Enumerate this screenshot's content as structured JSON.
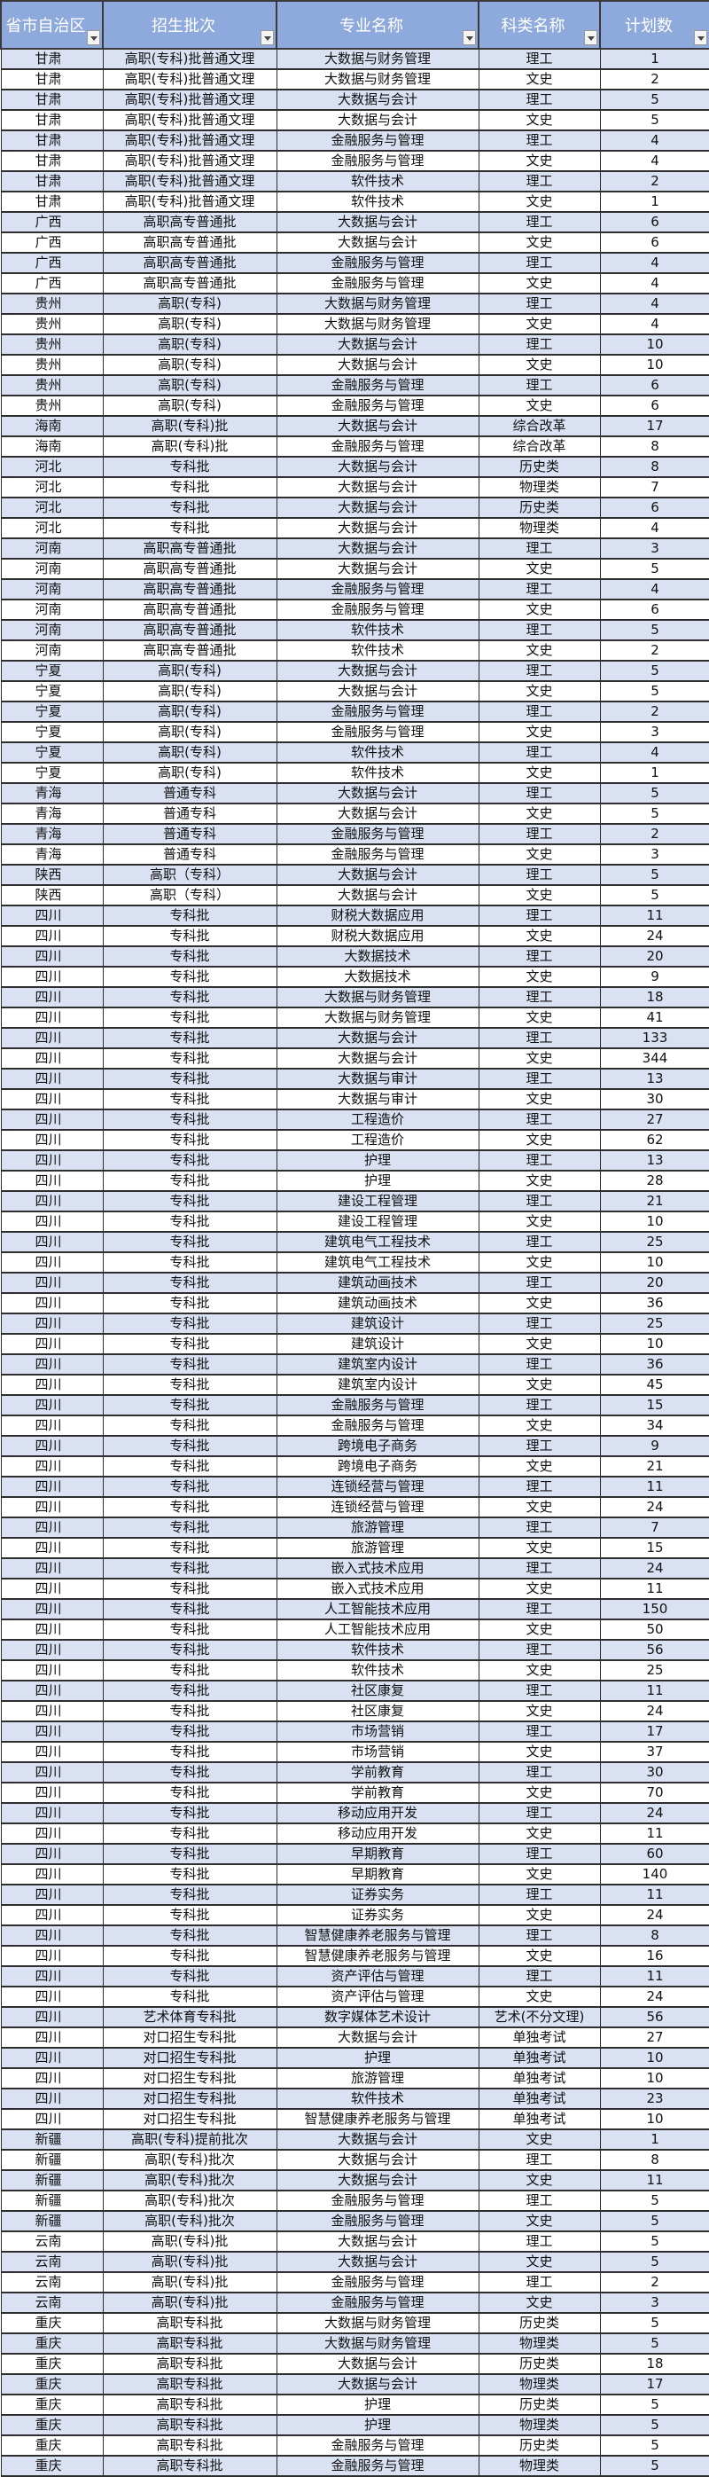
{
  "colors": {
    "header_bg": "#8EA9DB",
    "odd_row": "#D9E1F2",
    "even_row": "#FFFFFF"
  },
  "header": [
    "省市自治区",
    "招生批次",
    "专业名称",
    "科类名称",
    "计划数"
  ],
  "rows": [
    [
      "甘肃",
      "高职(专科)批普通文理",
      "大数据与财务管理",
      "理工",
      "1"
    ],
    [
      "甘肃",
      "高职(专科)批普通文理",
      "大数据与财务管理",
      "文史",
      "2"
    ],
    [
      "甘肃",
      "高职(专科)批普通文理",
      "大数据与会计",
      "理工",
      "5"
    ],
    [
      "甘肃",
      "高职(专科)批普通文理",
      "大数据与会计",
      "文史",
      "5"
    ],
    [
      "甘肃",
      "高职(专科)批普通文理",
      "金融服务与管理",
      "理工",
      "4"
    ],
    [
      "甘肃",
      "高职(专科)批普通文理",
      "金融服务与管理",
      "文史",
      "4"
    ],
    [
      "甘肃",
      "高职(专科)批普通文理",
      "软件技术",
      "理工",
      "2"
    ],
    [
      "甘肃",
      "高职(专科)批普通文理",
      "软件技术",
      "文史",
      "1"
    ],
    [
      "广西",
      "高职高专普通批",
      "大数据与会计",
      "理工",
      "6"
    ],
    [
      "广西",
      "高职高专普通批",
      "大数据与会计",
      "文史",
      "6"
    ],
    [
      "广西",
      "高职高专普通批",
      "金融服务与管理",
      "理工",
      "4"
    ],
    [
      "广西",
      "高职高专普通批",
      "金融服务与管理",
      "文史",
      "4"
    ],
    [
      "贵州",
      "高职(专科)",
      "大数据与财务管理",
      "理工",
      "4"
    ],
    [
      "贵州",
      "高职(专科)",
      "大数据与财务管理",
      "文史",
      "4"
    ],
    [
      "贵州",
      "高职(专科)",
      "大数据与会计",
      "理工",
      "10"
    ],
    [
      "贵州",
      "高职(专科)",
      "大数据与会计",
      "文史",
      "10"
    ],
    [
      "贵州",
      "高职(专科)",
      "金融服务与管理",
      "理工",
      "6"
    ],
    [
      "贵州",
      "高职(专科)",
      "金融服务与管理",
      "文史",
      "6"
    ],
    [
      "海南",
      "高职(专科)批",
      "大数据与会计",
      "综合改革",
      "17"
    ],
    [
      "海南",
      "高职(专科)批",
      "金融服务与管理",
      "综合改革",
      "8"
    ],
    [
      "河北",
      "专科批",
      "大数据与会计",
      "历史类",
      "8"
    ],
    [
      "河北",
      "专科批",
      "大数据与会计",
      "物理类",
      "7"
    ],
    [
      "河北",
      "专科批",
      "大数据与会计",
      "历史类",
      "6"
    ],
    [
      "河北",
      "专科批",
      "大数据与会计",
      "物理类",
      "4"
    ],
    [
      "河南",
      "高职高专普通批",
      "大数据与会计",
      "理工",
      "3"
    ],
    [
      "河南",
      "高职高专普通批",
      "大数据与会计",
      "文史",
      "5"
    ],
    [
      "河南",
      "高职高专普通批",
      "金融服务与管理",
      "理工",
      "4"
    ],
    [
      "河南",
      "高职高专普通批",
      "金融服务与管理",
      "文史",
      "6"
    ],
    [
      "河南",
      "高职高专普通批",
      "软件技术",
      "理工",
      "5"
    ],
    [
      "河南",
      "高职高专普通批",
      "软件技术",
      "文史",
      "2"
    ],
    [
      "宁夏",
      "高职(专科)",
      "大数据与会计",
      "理工",
      "5"
    ],
    [
      "宁夏",
      "高职(专科)",
      "大数据与会计",
      "文史",
      "5"
    ],
    [
      "宁夏",
      "高职(专科)",
      "金融服务与管理",
      "理工",
      "2"
    ],
    [
      "宁夏",
      "高职(专科)",
      "金融服务与管理",
      "文史",
      "3"
    ],
    [
      "宁夏",
      "高职(专科)",
      "软件技术",
      "理工",
      "4"
    ],
    [
      "宁夏",
      "高职(专科)",
      "软件技术",
      "文史",
      "1"
    ],
    [
      "青海",
      "普通专科",
      "大数据与会计",
      "理工",
      "5"
    ],
    [
      "青海",
      "普通专科",
      "大数据与会计",
      "文史",
      "5"
    ],
    [
      "青海",
      "普通专科",
      "金融服务与管理",
      "理工",
      "2"
    ],
    [
      "青海",
      "普通专科",
      "金融服务与管理",
      "文史",
      "3"
    ],
    [
      "陕西",
      "高职（专科）",
      "大数据与会计",
      "理工",
      "5"
    ],
    [
      "陕西",
      "高职（专科）",
      "大数据与会计",
      "文史",
      "5"
    ],
    [
      "四川",
      "专科批",
      "财税大数据应用",
      "理工",
      "11"
    ],
    [
      "四川",
      "专科批",
      "财税大数据应用",
      "文史",
      "24"
    ],
    [
      "四川",
      "专科批",
      "大数据技术",
      "理工",
      "20"
    ],
    [
      "四川",
      "专科批",
      "大数据技术",
      "文史",
      "9"
    ],
    [
      "四川",
      "专科批",
      "大数据与财务管理",
      "理工",
      "18"
    ],
    [
      "四川",
      "专科批",
      "大数据与财务管理",
      "文史",
      "41"
    ],
    [
      "四川",
      "专科批",
      "大数据与会计",
      "理工",
      "133"
    ],
    [
      "四川",
      "专科批",
      "大数据与会计",
      "文史",
      "344"
    ],
    [
      "四川",
      "专科批",
      "大数据与审计",
      "理工",
      "13"
    ],
    [
      "四川",
      "专科批",
      "大数据与审计",
      "文史",
      "30"
    ],
    [
      "四川",
      "专科批",
      "工程造价",
      "理工",
      "27"
    ],
    [
      "四川",
      "专科批",
      "工程造价",
      "文史",
      "62"
    ],
    [
      "四川",
      "专科批",
      "护理",
      "理工",
      "13"
    ],
    [
      "四川",
      "专科批",
      "护理",
      "文史",
      "28"
    ],
    [
      "四川",
      "专科批",
      "建设工程管理",
      "理工",
      "21"
    ],
    [
      "四川",
      "专科批",
      "建设工程管理",
      "文史",
      "10"
    ],
    [
      "四川",
      "专科批",
      "建筑电气工程技术",
      "理工",
      "25"
    ],
    [
      "四川",
      "专科批",
      "建筑电气工程技术",
      "文史",
      "10"
    ],
    [
      "四川",
      "专科批",
      "建筑动画技术",
      "理工",
      "20"
    ],
    [
      "四川",
      "专科批",
      "建筑动画技术",
      "文史",
      "36"
    ],
    [
      "四川",
      "专科批",
      "建筑设计",
      "理工",
      "25"
    ],
    [
      "四川",
      "专科批",
      "建筑设计",
      "文史",
      "10"
    ],
    [
      "四川",
      "专科批",
      "建筑室内设计",
      "理工",
      "36"
    ],
    [
      "四川",
      "专科批",
      "建筑室内设计",
      "文史",
      "45"
    ],
    [
      "四川",
      "专科批",
      "金融服务与管理",
      "理工",
      "15"
    ],
    [
      "四川",
      "专科批",
      "金融服务与管理",
      "文史",
      "34"
    ],
    [
      "四川",
      "专科批",
      "跨境电子商务",
      "理工",
      "9"
    ],
    [
      "四川",
      "专科批",
      "跨境电子商务",
      "文史",
      "21"
    ],
    [
      "四川",
      "专科批",
      "连锁经营与管理",
      "理工",
      "11"
    ],
    [
      "四川",
      "专科批",
      "连锁经营与管理",
      "文史",
      "24"
    ],
    [
      "四川",
      "专科批",
      "旅游管理",
      "理工",
      "7"
    ],
    [
      "四川",
      "专科批",
      "旅游管理",
      "文史",
      "15"
    ],
    [
      "四川",
      "专科批",
      "嵌入式技术应用",
      "理工",
      "24"
    ],
    [
      "四川",
      "专科批",
      "嵌入式技术应用",
      "文史",
      "11"
    ],
    [
      "四川",
      "专科批",
      "人工智能技术应用",
      "理工",
      "150"
    ],
    [
      "四川",
      "专科批",
      "人工智能技术应用",
      "文史",
      "50"
    ],
    [
      "四川",
      "专科批",
      "软件技术",
      "理工",
      "56"
    ],
    [
      "四川",
      "专科批",
      "软件技术",
      "文史",
      "25"
    ],
    [
      "四川",
      "专科批",
      "社区康复",
      "理工",
      "11"
    ],
    [
      "四川",
      "专科批",
      "社区康复",
      "文史",
      "24"
    ],
    [
      "四川",
      "专科批",
      "市场营销",
      "理工",
      "17"
    ],
    [
      "四川",
      "专科批",
      "市场营销",
      "文史",
      "37"
    ],
    [
      "四川",
      "专科批",
      "学前教育",
      "理工",
      "30"
    ],
    [
      "四川",
      "专科批",
      "学前教育",
      "文史",
      "70"
    ],
    [
      "四川",
      "专科批",
      "移动应用开发",
      "理工",
      "24"
    ],
    [
      "四川",
      "专科批",
      "移动应用开发",
      "文史",
      "11"
    ],
    [
      "四川",
      "专科批",
      "早期教育",
      "理工",
      "60"
    ],
    [
      "四川",
      "专科批",
      "早期教育",
      "文史",
      "140"
    ],
    [
      "四川",
      "专科批",
      "证券实务",
      "理工",
      "11"
    ],
    [
      "四川",
      "专科批",
      "证券实务",
      "文史",
      "24"
    ],
    [
      "四川",
      "专科批",
      "智慧健康养老服务与管理",
      "理工",
      "8"
    ],
    [
      "四川",
      "专科批",
      "智慧健康养老服务与管理",
      "文史",
      "16"
    ],
    [
      "四川",
      "专科批",
      "资产评估与管理",
      "理工",
      "11"
    ],
    [
      "四川",
      "专科批",
      "资产评估与管理",
      "文史",
      "24"
    ],
    [
      "四川",
      "艺术体育专科批",
      "数字媒体艺术设计",
      "艺术(不分文理)",
      "56"
    ],
    [
      "四川",
      "对口招生专科批",
      "大数据与会计",
      "单独考试",
      "27"
    ],
    [
      "四川",
      "对口招生专科批",
      "护理",
      "单独考试",
      "10"
    ],
    [
      "四川",
      "对口招生专科批",
      "旅游管理",
      "单独考试",
      "10"
    ],
    [
      "四川",
      "对口招生专科批",
      "软件技术",
      "单独考试",
      "23"
    ],
    [
      "四川",
      "对口招生专科批",
      "智慧健康养老服务与管理",
      "单独考试",
      "10"
    ],
    [
      "新疆",
      "高职(专科)提前批次",
      "大数据与会计",
      "文史",
      "1"
    ],
    [
      "新疆",
      "高职(专科)批次",
      "大数据与会计",
      "理工",
      "8"
    ],
    [
      "新疆",
      "高职(专科)批次",
      "大数据与会计",
      "文史",
      "11"
    ],
    [
      "新疆",
      "高职(专科)批次",
      "金融服务与管理",
      "理工",
      "5"
    ],
    [
      "新疆",
      "高职(专科)批次",
      "金融服务与管理",
      "文史",
      "5"
    ],
    [
      "云南",
      "高职(专科)批",
      "大数据与会计",
      "理工",
      "5"
    ],
    [
      "云南",
      "高职(专科)批",
      "大数据与会计",
      "文史",
      "5"
    ],
    [
      "云南",
      "高职(专科)批",
      "金融服务与管理",
      "理工",
      "2"
    ],
    [
      "云南",
      "高职(专科)批",
      "金融服务与管理",
      "文史",
      "3"
    ],
    [
      "重庆",
      "高职专科批",
      "大数据与财务管理",
      "历史类",
      "5"
    ],
    [
      "重庆",
      "高职专科批",
      "大数据与财务管理",
      "物理类",
      "5"
    ],
    [
      "重庆",
      "高职专科批",
      "大数据与会计",
      "历史类",
      "18"
    ],
    [
      "重庆",
      "高职专科批",
      "大数据与会计",
      "物理类",
      "17"
    ],
    [
      "重庆",
      "高职专科批",
      "护理",
      "历史类",
      "5"
    ],
    [
      "重庆",
      "高职专科批",
      "护理",
      "物理类",
      "5"
    ],
    [
      "重庆",
      "高职专科批",
      "金融服务与管理",
      "历史类",
      "5"
    ],
    [
      "重庆",
      "高职专科批",
      "金融服务与管理",
      "物理类",
      "5"
    ]
  ]
}
